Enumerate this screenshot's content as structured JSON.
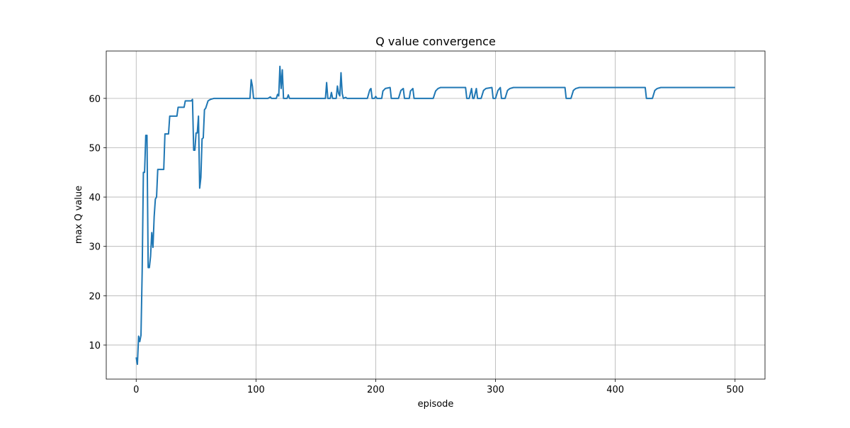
{
  "chart_data": {
    "type": "line",
    "title": "Q value convergence",
    "xlabel": "episode",
    "ylabel": "max Q value",
    "x": [
      0,
      1,
      2,
      3,
      4,
      5,
      6,
      7,
      8,
      9,
      10,
      11,
      12,
      13,
      14,
      15,
      16,
      17,
      18,
      19,
      23,
      24,
      27,
      28,
      34,
      35,
      40,
      41,
      46,
      47,
      48,
      49,
      50,
      51,
      52,
      53,
      54,
      55,
      56,
      57,
      58,
      60,
      62,
      65,
      95,
      96,
      97,
      98,
      110,
      112,
      113,
      117,
      118,
      119,
      120,
      121,
      122,
      123,
      126,
      127,
      128,
      158,
      159,
      160,
      162,
      163,
      164,
      167,
      168,
      169,
      170,
      171,
      172,
      173,
      175,
      176,
      193,
      195,
      196,
      197,
      199,
      200,
      201,
      205,
      206,
      208,
      212,
      213,
      219,
      221,
      223,
      224,
      228,
      229,
      231,
      232,
      248,
      250,
      252,
      254,
      275,
      276,
      278,
      280,
      281,
      282,
      284,
      285,
      288,
      290,
      292,
      297,
      298,
      300,
      302,
      304,
      305,
      308,
      310,
      312,
      315,
      358,
      359,
      363,
      365,
      367,
      370,
      425,
      426,
      431,
      433,
      435,
      438,
      500
    ],
    "series": [
      {
        "name": "max Q value",
        "color": "#1f77b4",
        "values": [
          7.5,
          6.1,
          11.8,
          10.7,
          12,
          25,
          45,
          45,
          52.5,
          52.5,
          25.7,
          25.7,
          28,
          32.8,
          29.8,
          36,
          39.6,
          40,
          45.6,
          45.6,
          45.6,
          52.8,
          52.8,
          56.4,
          56.4,
          58.2,
          58.2,
          59.5,
          59.5,
          59.8,
          49.5,
          49.5,
          53,
          53,
          56.4,
          41.8,
          44,
          51.8,
          52,
          57.7,
          58,
          59.5,
          59.8,
          60,
          60,
          63.8,
          62.5,
          60,
          60,
          60.3,
          60,
          60,
          60.8,
          60.5,
          66.5,
          62,
          65.8,
          60,
          60,
          60.7,
          60,
          60,
          63.2,
          60,
          60,
          61.2,
          60,
          60,
          62.5,
          61,
          60.5,
          65.2,
          61,
          60,
          60.2,
          60,
          60,
          61.7,
          62,
          60,
          60,
          60.4,
          60,
          60,
          61.5,
          62,
          62.2,
          60,
          60,
          61.6,
          62,
          60,
          60,
          61.5,
          62,
          60,
          60,
          61.5,
          62,
          62.2,
          62.2,
          60,
          60,
          62,
          60,
          60,
          62,
          60,
          60,
          61.6,
          62,
          62.2,
          60,
          60,
          61.6,
          62.2,
          60,
          60,
          61.6,
          62,
          62.2,
          62.2,
          60,
          60,
          61.6,
          62,
          62.2,
          62.2,
          60,
          60,
          61.6,
          62,
          62.2,
          62.2
        ]
      }
    ],
    "xlim": [
      -25,
      525
    ],
    "ylim": [
      3.1,
      69.6
    ],
    "xticks": [
      0,
      100,
      200,
      300,
      400,
      500
    ],
    "yticks": [
      10,
      20,
      30,
      40,
      50,
      60
    ],
    "grid": true
  }
}
